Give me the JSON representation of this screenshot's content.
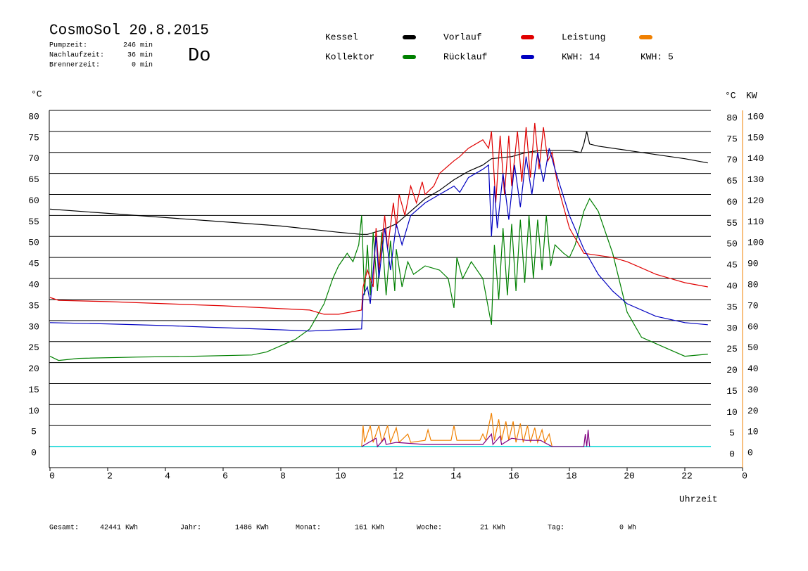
{
  "chart_data": {
    "type": "line",
    "title": "CosmoSol 20.8.2015",
    "weekday": "Do",
    "stats": [
      {
        "label": "Pumpzeit:",
        "value": "246 min"
      },
      {
        "label": "Nachlaufzeit:",
        "value": "36 min"
      },
      {
        "label": "Brennerzeit:",
        "value": "0 min"
      }
    ],
    "kwh_labels": [
      {
        "text": "KWH: 14",
        "color": "#f08000"
      },
      {
        "text": "KWH: 5",
        "color": "#800080"
      }
    ],
    "y_unit": "°C",
    "y2_unit_left": "°C",
    "y2_unit": "KW",
    "x_label": "Uhrzeit",
    "footer": [
      {
        "label": "Gesamt:",
        "value": "42441 KWh"
      },
      {
        "label": "Jahr:",
        "value": "1486 KWh"
      },
      {
        "label": "Monat:",
        "value": "161 KWh"
      },
      {
        "label": "Woche:",
        "value": "21 KWh"
      },
      {
        "label": "Tag:",
        "value": "0 Wh"
      }
    ],
    "xlim": [
      0,
      24
    ],
    "xticks": [
      0,
      2,
      4,
      6,
      8,
      10,
      12,
      14,
      16,
      18,
      20,
      22,
      {
        "value": 24,
        "label": "0"
      }
    ],
    "ylim": [
      -5,
      80
    ],
    "yticks": [
      80,
      75,
      70,
      65,
      60,
      55,
      50,
      45,
      40,
      35,
      30,
      25,
      20,
      15,
      10,
      5,
      0
    ],
    "y2lim": [
      -10,
      160
    ],
    "y2ticks": [
      160,
      150,
      140,
      130,
      120,
      110,
      100,
      90,
      80,
      70,
      60,
      50,
      40,
      30,
      20,
      10,
      0
    ],
    "y2_color": "#f08000",
    "baseline_color": "#00d8d8",
    "grid": true,
    "series": [
      {
        "name": "Kessel",
        "color": "#000000",
        "x": [
          0,
          2,
          4,
          6,
          8,
          10,
          10.8,
          11,
          11.5,
          12,
          12.5,
          13,
          13.5,
          14,
          14.5,
          15,
          15.3,
          16,
          16.5,
          17,
          17.5,
          18,
          18.4,
          18.5,
          18.6,
          18.7,
          19,
          20,
          21,
          22,
          22.8
        ],
        "values": [
          56.5,
          55.5,
          54.5,
          53.5,
          52.5,
          51,
          50.5,
          50.5,
          51.5,
          53,
          56,
          59,
          61,
          63.5,
          65.5,
          67,
          68.5,
          69,
          70,
          70.5,
          70.5,
          70.5,
          70,
          72,
          75,
          72,
          71.5,
          70.5,
          69.5,
          68.5,
          67.5
        ]
      },
      {
        "name": "Kollektor",
        "color": "#008000",
        "x": [
          0,
          0.3,
          1,
          3,
          5,
          7,
          7.5,
          8,
          8.5,
          9,
          9.5,
          9.8,
          10,
          10.3,
          10.5,
          10.7,
          10.8,
          10.9,
          11,
          11.1,
          11.2,
          11.35,
          11.5,
          11.65,
          11.8,
          11.95,
          12,
          12.2,
          12.4,
          12.6,
          13,
          13.5,
          13.8,
          14,
          14.1,
          14.3,
          14.6,
          15,
          15.3,
          15.4,
          15.55,
          15.7,
          15.85,
          16,
          16.15,
          16.3,
          16.45,
          16.6,
          16.75,
          16.9,
          17.05,
          17.2,
          17.35,
          17.5,
          17.8,
          18,
          18.2,
          18.5,
          18.7,
          19,
          19.5,
          20,
          20.5,
          21,
          21.5,
          22,
          22.8
        ],
        "values": [
          21.5,
          20.5,
          21,
          21.3,
          21.5,
          21.8,
          22.5,
          24,
          25.5,
          28,
          34,
          40,
          43,
          46,
          44,
          48,
          55,
          36,
          48,
          36,
          51,
          37,
          51,
          36,
          49,
          37,
          47,
          38,
          44,
          41,
          43,
          42,
          40,
          33,
          45,
          40,
          44,
          40,
          29,
          48,
          35,
          52,
          36,
          53,
          37,
          54,
          39,
          55,
          40,
          54,
          42,
          55,
          43,
          48,
          46,
          45,
          48,
          56,
          59,
          56,
          46,
          32,
          26,
          24.5,
          23,
          21.5,
          22
        ]
      },
      {
        "name": "Vorlauf",
        "color": "#e00000",
        "x": [
          0,
          0.3,
          2,
          4,
          6,
          7.5,
          9,
          9.5,
          10,
          10.8,
          10.85,
          11,
          11.2,
          11.3,
          11.4,
          11.6,
          11.7,
          11.9,
          12,
          12.1,
          12.3,
          12.5,
          12.7,
          12.9,
          13,
          13.3,
          13.5,
          14,
          14.2,
          14.5,
          15,
          15.2,
          15.3,
          15.45,
          15.6,
          15.75,
          15.9,
          16,
          16.2,
          16.35,
          16.5,
          16.65,
          16.8,
          16.95,
          17.1,
          17.25,
          17.4,
          17.6,
          18,
          18.5,
          19,
          19.5,
          20,
          20.5,
          21,
          21.5,
          22,
          22.8
        ],
        "values": [
          35.5,
          34.8,
          34.5,
          34,
          33.5,
          33,
          32.5,
          31.5,
          31.5,
          32.5,
          38,
          42,
          38,
          52,
          42,
          55,
          47,
          58,
          52,
          60,
          55,
          62,
          58,
          63,
          60,
          62,
          65,
          68,
          69,
          71,
          73,
          71,
          75,
          58,
          74,
          60,
          74,
          62,
          75,
          63,
          76,
          64,
          77,
          66,
          76,
          68,
          70,
          62,
          52,
          46,
          45.5,
          45,
          44,
          42.5,
          41,
          40,
          39,
          38
        ]
      },
      {
        "name": "Rücklauf",
        "color": "#0000c0",
        "x": [
          0,
          2,
          4,
          6,
          8,
          9,
          10,
          10.8,
          10.85,
          11,
          11.1,
          11.3,
          11.4,
          11.6,
          11.8,
          12,
          12.2,
          12.5,
          13,
          13.5,
          14,
          14.2,
          14.5,
          15,
          15.2,
          15.3,
          15.4,
          15.5,
          15.7,
          15.9,
          16.1,
          16.3,
          16.5,
          16.7,
          16.9,
          17.1,
          17.3,
          17.5,
          18,
          18.5,
          19,
          19.5,
          20,
          21,
          22,
          22.8
        ],
        "values": [
          29.5,
          29.2,
          28.8,
          28.3,
          27.8,
          27.5,
          27.8,
          28,
          36,
          38,
          34,
          50,
          40,
          52,
          42,
          53,
          48,
          55,
          58,
          60,
          62,
          60.5,
          64,
          66,
          67,
          50,
          62,
          52,
          65,
          54,
          67,
          57,
          69,
          60,
          70,
          63,
          71,
          66,
          55,
          47,
          41,
          37,
          34,
          31,
          29.5,
          29
        ]
      },
      {
        "name": "Leistung",
        "color": "#f08000",
        "axis": "y2",
        "x": [
          10.8,
          10.85,
          10.9,
          11.1,
          11.2,
          11.4,
          11.5,
          11.7,
          11.8,
          12,
          12.1,
          12.4,
          12.5,
          13,
          13.1,
          13.2,
          13.9,
          14,
          14.1,
          14.9,
          15,
          15.1,
          15.3,
          15.4,
          15.55,
          15.65,
          15.8,
          15.9,
          16.05,
          16.15,
          16.3,
          16.4,
          16.55,
          16.65,
          16.8,
          16.9,
          17.05,
          17.15,
          17.3,
          17.4
        ],
        "values": [
          0,
          10,
          2,
          10,
          2,
          10,
          2,
          10,
          2,
          9,
          2,
          6,
          2,
          3,
          8,
          3,
          3,
          10,
          3,
          3,
          6,
          3,
          16,
          3,
          13,
          3,
          12,
          3,
          12,
          2,
          11,
          2,
          10,
          2,
          9,
          2,
          8,
          2,
          6,
          0
        ]
      },
      {
        "color": "#800080",
        "axis": "y2",
        "x": [
          10.8,
          11.3,
          11.35,
          11.6,
          11.65,
          12,
          13,
          15,
          15.3,
          15.35,
          15.6,
          15.65,
          16,
          16.5,
          17,
          17.4,
          18.5,
          18.55,
          18.6,
          18.65,
          18.7
        ],
        "values": [
          0,
          4,
          0,
          4,
          1,
          2,
          1,
          1,
          6,
          1,
          5,
          1,
          4,
          3,
          3,
          0,
          0,
          6,
          0,
          8,
          0
        ]
      }
    ]
  }
}
